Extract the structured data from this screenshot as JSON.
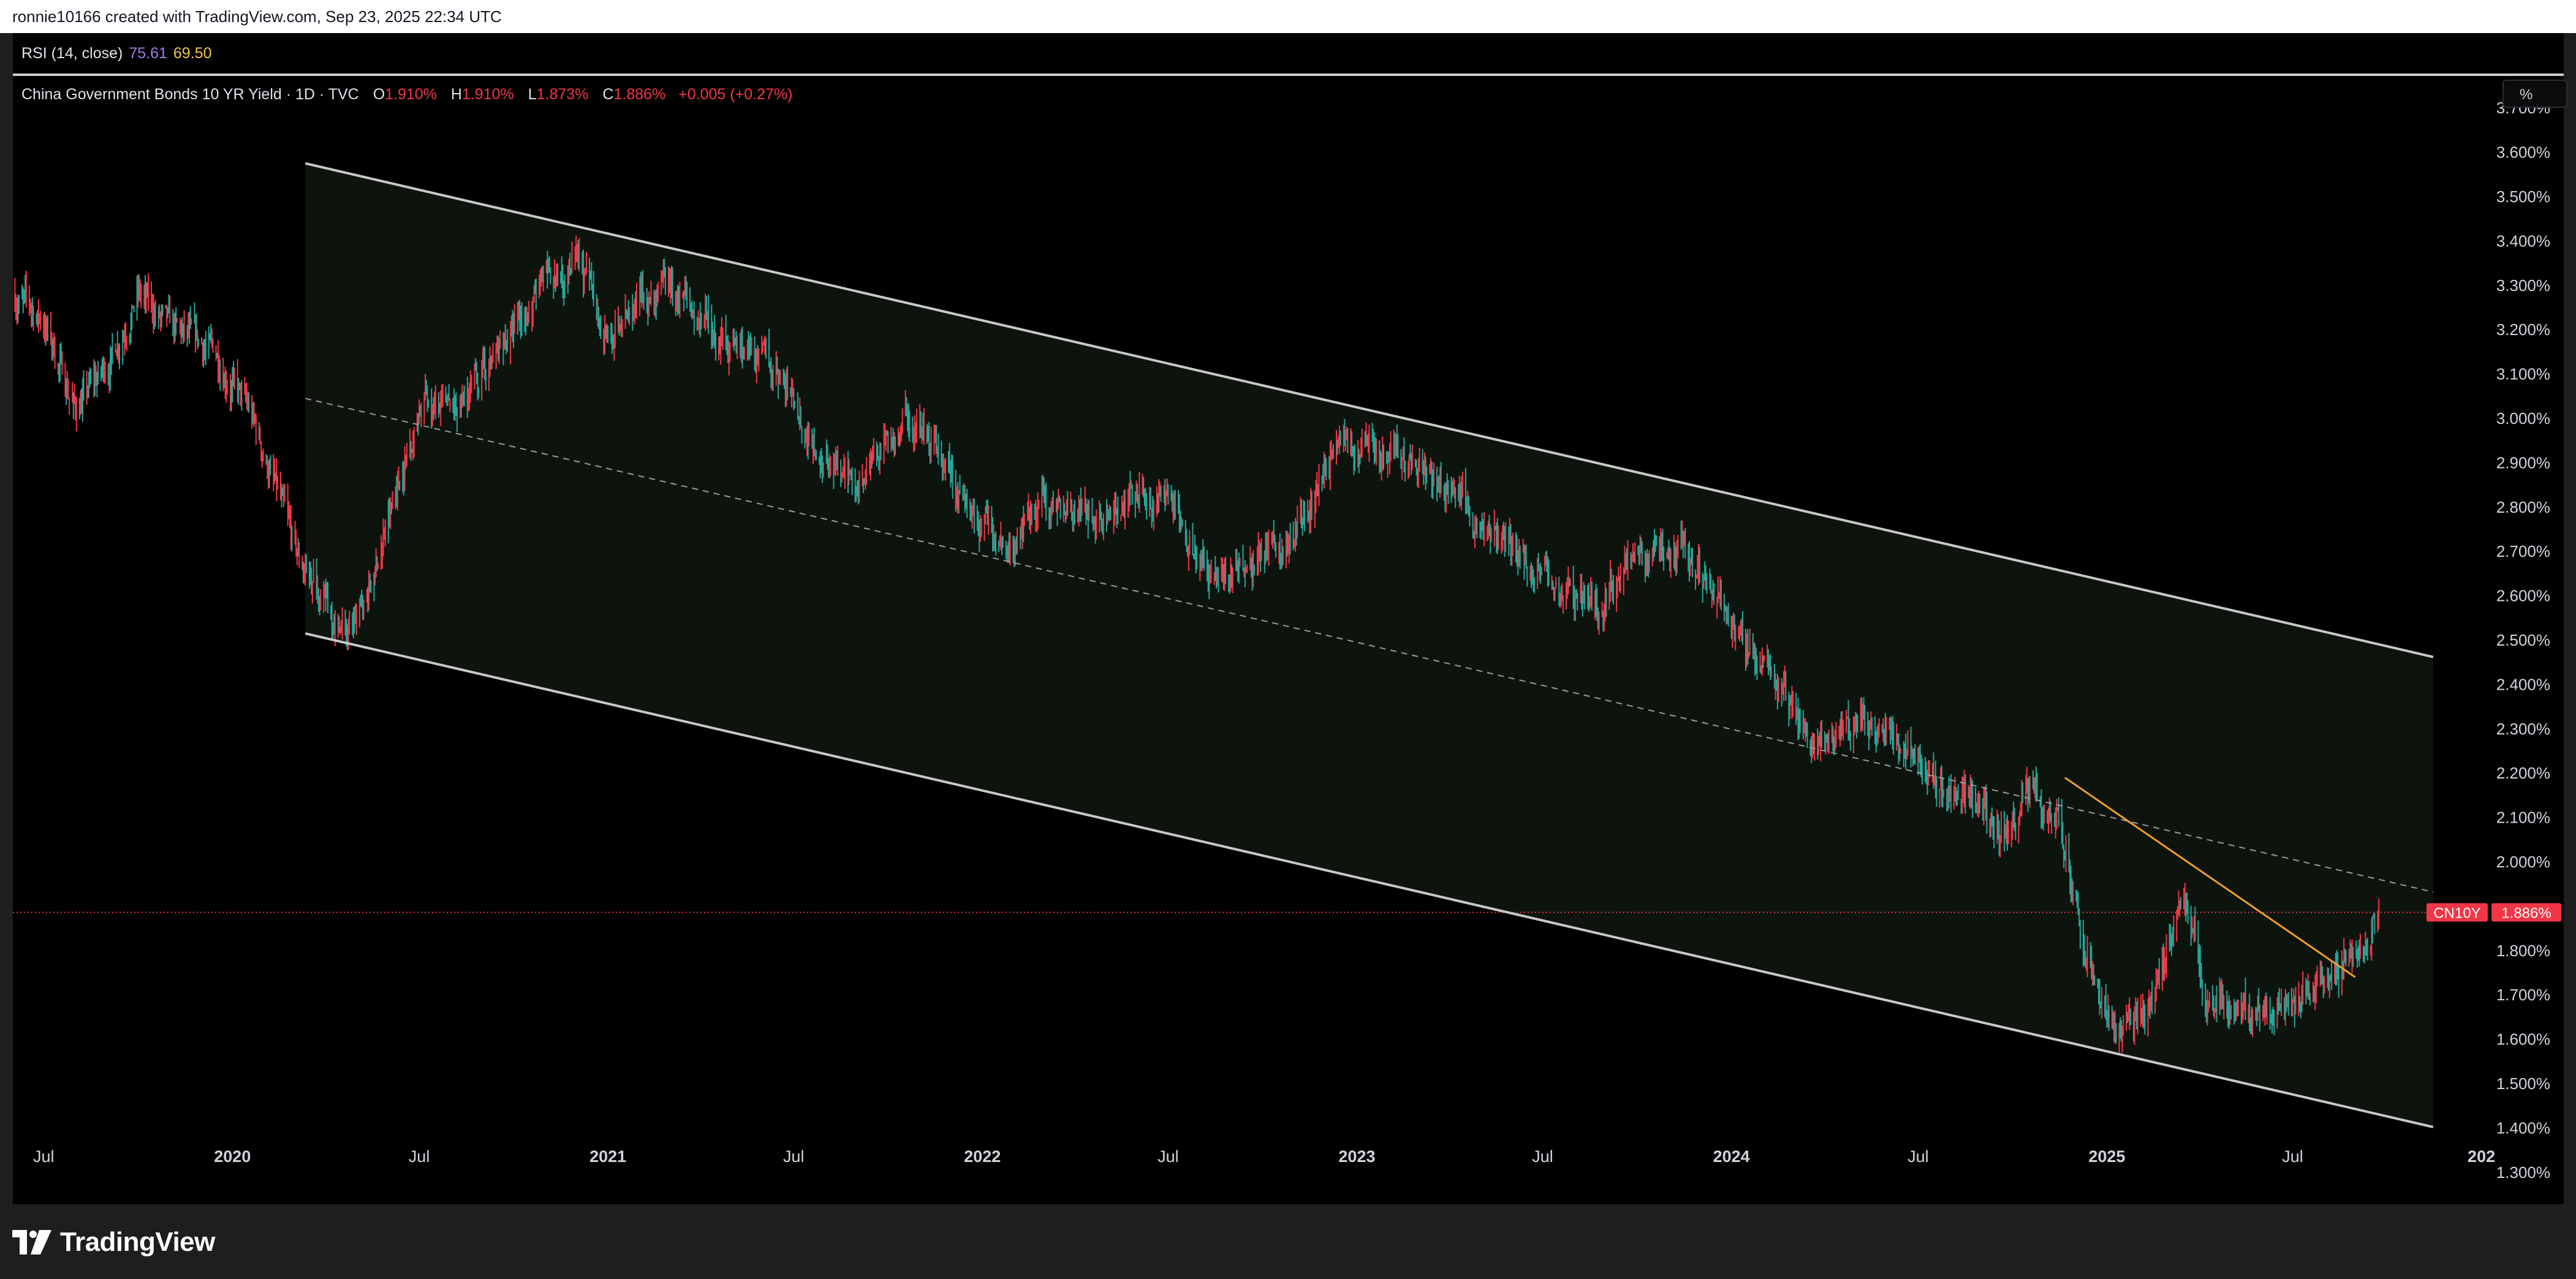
{
  "header": {
    "attribution": "ronnie10166 created with TradingView.com, Sep 23, 2025 22:34 UTC"
  },
  "rsi_legend": {
    "label": "RSI (14, close)",
    "value1": "75.61",
    "value2": "69.50"
  },
  "main_legend": {
    "symbol": "China Government Bonds 10 YR Yield · 1D · TVC",
    "open_key": "O",
    "open": "1.910%",
    "high_key": "H",
    "high": "1.910%",
    "low_key": "L",
    "low": "1.873%",
    "close_key": "C",
    "close": "1.886%",
    "change": "+0.005 (+0.27%)"
  },
  "scale_button": {
    "label": "%"
  },
  "price_tag": {
    "ticker": "CN10Y",
    "value": "1.886%"
  },
  "footer": {
    "brand": "TradingView"
  },
  "colors": {
    "background": "#000000",
    "up_candle": "#26a69a",
    "down_candle": "#f23645",
    "channel_fill": "#0d140e",
    "channel_line": "#c8c8c8",
    "trendline": "#f5a028"
  },
  "chart_data": {
    "type": "candlestick",
    "title": "China Government Bonds 10 YR Yield · 1D · TVC",
    "last_price": 1.886,
    "ylim": [
      1.25,
      3.75
    ],
    "xlim": [
      "2019-06-01",
      "2025-11-30"
    ],
    "y_ticks": [
      {
        "value": 3.7,
        "label": "3.700%"
      },
      {
        "value": 3.6,
        "label": "3.600%"
      },
      {
        "value": 3.5,
        "label": "3.500%"
      },
      {
        "value": 3.4,
        "label": "3.400%"
      },
      {
        "value": 3.3,
        "label": "3.300%"
      },
      {
        "value": 3.2,
        "label": "3.200%"
      },
      {
        "value": 3.1,
        "label": "3.100%"
      },
      {
        "value": 3.0,
        "label": "3.000%"
      },
      {
        "value": 2.9,
        "label": "2.900%"
      },
      {
        "value": 2.8,
        "label": "2.800%"
      },
      {
        "value": 2.7,
        "label": "2.700%"
      },
      {
        "value": 2.6,
        "label": "2.600%"
      },
      {
        "value": 2.5,
        "label": "2.500%"
      },
      {
        "value": 2.4,
        "label": "2.400%"
      },
      {
        "value": 2.3,
        "label": "2.300%"
      },
      {
        "value": 2.2,
        "label": "2.200%"
      },
      {
        "value": 2.1,
        "label": "2.100%"
      },
      {
        "value": 2.0,
        "label": "2.000%"
      },
      {
        "value": 1.8,
        "label": "1.800%"
      },
      {
        "value": 1.7,
        "label": "1.700%"
      },
      {
        "value": 1.6,
        "label": "1.600%"
      },
      {
        "value": 1.5,
        "label": "1.500%"
      },
      {
        "value": 1.4,
        "label": "1.400%"
      },
      {
        "value": 1.3,
        "label": "1.300%"
      }
    ],
    "x_ticks": [
      {
        "date": "2019-07-01",
        "label": "Jul",
        "bold": false
      },
      {
        "date": "2020-01-01",
        "label": "2020",
        "bold": true
      },
      {
        "date": "2020-07-01",
        "label": "Jul",
        "bold": false
      },
      {
        "date": "2021-01-01",
        "label": "2021",
        "bold": true
      },
      {
        "date": "2021-07-01",
        "label": "Jul",
        "bold": false
      },
      {
        "date": "2022-01-01",
        "label": "2022",
        "bold": true
      },
      {
        "date": "2022-07-01",
        "label": "Jul",
        "bold": false
      },
      {
        "date": "2023-01-01",
        "label": "2023",
        "bold": true
      },
      {
        "date": "2023-07-01",
        "label": "Jul",
        "bold": false
      },
      {
        "date": "2024-01-01",
        "label": "2024",
        "bold": true
      },
      {
        "date": "2024-07-01",
        "label": "Jul",
        "bold": false
      },
      {
        "date": "2025-01-01",
        "label": "2025",
        "bold": true
      },
      {
        "date": "2025-07-01",
        "label": "Jul",
        "bold": false
      },
      {
        "date": "2026-01-01",
        "label": "202",
        "bold": true
      }
    ],
    "series": [
      {
        "kind": "close_path",
        "points": [
          [
            "2019-06-01",
            3.28
          ],
          [
            "2019-07-01",
            3.22
          ],
          [
            "2019-08-01",
            3.02
          ],
          [
            "2019-09-01",
            3.12
          ],
          [
            "2019-10-01",
            3.28
          ],
          [
            "2019-11-01",
            3.2
          ],
          [
            "2019-12-15",
            3.15
          ],
          [
            "2020-01-20",
            3.0
          ],
          [
            "2020-02-15",
            2.82
          ],
          [
            "2020-03-05",
            2.68
          ],
          [
            "2020-03-25",
            2.62
          ],
          [
            "2020-04-10",
            2.55
          ],
          [
            "2020-04-25",
            2.52
          ],
          [
            "2020-05-15",
            2.62
          ],
          [
            "2020-06-10",
            2.85
          ],
          [
            "2020-07-05",
            3.05
          ],
          [
            "2020-08-01",
            3.0
          ],
          [
            "2020-09-01",
            3.1
          ],
          [
            "2020-10-01",
            3.2
          ],
          [
            "2020-11-01",
            3.3
          ],
          [
            "2020-12-01",
            3.35
          ],
          [
            "2021-01-05",
            3.18
          ],
          [
            "2021-02-10",
            3.28
          ],
          [
            "2021-03-01",
            3.3
          ],
          [
            "2021-04-01",
            3.2
          ],
          [
            "2021-05-15",
            3.15
          ],
          [
            "2021-06-15",
            3.1
          ],
          [
            "2021-07-20",
            2.95
          ],
          [
            "2021-08-20",
            2.85
          ],
          [
            "2021-09-15",
            2.9
          ],
          [
            "2021-10-20",
            3.0
          ],
          [
            "2021-11-15",
            2.92
          ],
          [
            "2021-12-15",
            2.82
          ],
          [
            "2022-01-10",
            2.75
          ],
          [
            "2022-02-01",
            2.72
          ],
          [
            "2022-03-01",
            2.82
          ],
          [
            "2022-04-01",
            2.8
          ],
          [
            "2022-05-01",
            2.78
          ],
          [
            "2022-06-01",
            2.82
          ],
          [
            "2022-07-01",
            2.82
          ],
          [
            "2022-08-01",
            2.68
          ],
          [
            "2022-08-25",
            2.65
          ],
          [
            "2022-09-20",
            2.68
          ],
          [
            "2022-10-20",
            2.7
          ],
          [
            "2022-11-10",
            2.78
          ],
          [
            "2022-12-10",
            2.92
          ],
          [
            "2023-01-10",
            2.93
          ],
          [
            "2023-02-10",
            2.92
          ],
          [
            "2023-03-10",
            2.88
          ],
          [
            "2023-04-10",
            2.84
          ],
          [
            "2023-05-10",
            2.72
          ],
          [
            "2023-06-10",
            2.68
          ],
          [
            "2023-07-10",
            2.64
          ],
          [
            "2023-08-10",
            2.58
          ],
          [
            "2023-08-25",
            2.56
          ],
          [
            "2023-09-20",
            2.68
          ],
          [
            "2023-10-20",
            2.69
          ],
          [
            "2023-11-10",
            2.7
          ],
          [
            "2023-12-10",
            2.62
          ],
          [
            "2024-01-10",
            2.5
          ],
          [
            "2024-02-10",
            2.42
          ],
          [
            "2024-03-10",
            2.3
          ],
          [
            "2024-04-01",
            2.28
          ],
          [
            "2024-05-01",
            2.32
          ],
          [
            "2024-06-01",
            2.28
          ],
          [
            "2024-07-01",
            2.25
          ],
          [
            "2024-08-01",
            2.15
          ],
          [
            "2024-09-01",
            2.12
          ],
          [
            "2024-09-25",
            2.05
          ],
          [
            "2024-10-15",
            2.15
          ],
          [
            "2024-11-15",
            2.1
          ],
          [
            "2024-12-05",
            1.88
          ],
          [
            "2024-12-25",
            1.7
          ],
          [
            "2025-01-10",
            1.62
          ],
          [
            "2025-01-25",
            1.64
          ],
          [
            "2025-02-15",
            1.68
          ],
          [
            "2025-03-01",
            1.82
          ],
          [
            "2025-03-15",
            1.93
          ],
          [
            "2025-03-31",
            1.82
          ],
          [
            "2025-04-10",
            1.66
          ],
          [
            "2025-05-01",
            1.66
          ],
          [
            "2025-06-01",
            1.68
          ],
          [
            "2025-07-01",
            1.67
          ],
          [
            "2025-07-25",
            1.72
          ],
          [
            "2025-08-20",
            1.78
          ],
          [
            "2025-09-05",
            1.82
          ],
          [
            "2025-09-23",
            1.886
          ]
        ]
      }
    ],
    "channel": {
      "upper": [
        [
          "2020-03-12",
          3.575
        ],
        [
          "2025-11-15",
          2.462
        ]
      ],
      "lower": [
        [
          "2020-03-12",
          2.515
        ],
        [
          "2025-11-15",
          1.402
        ]
      ],
      "median": [
        [
          "2020-03-12",
          3.045
        ],
        [
          "2025-11-15",
          1.932
        ]
      ]
    },
    "trendline": [
      [
        "2024-11-21",
        2.19
      ],
      [
        "2025-08-31",
        1.74
      ]
    ]
  }
}
